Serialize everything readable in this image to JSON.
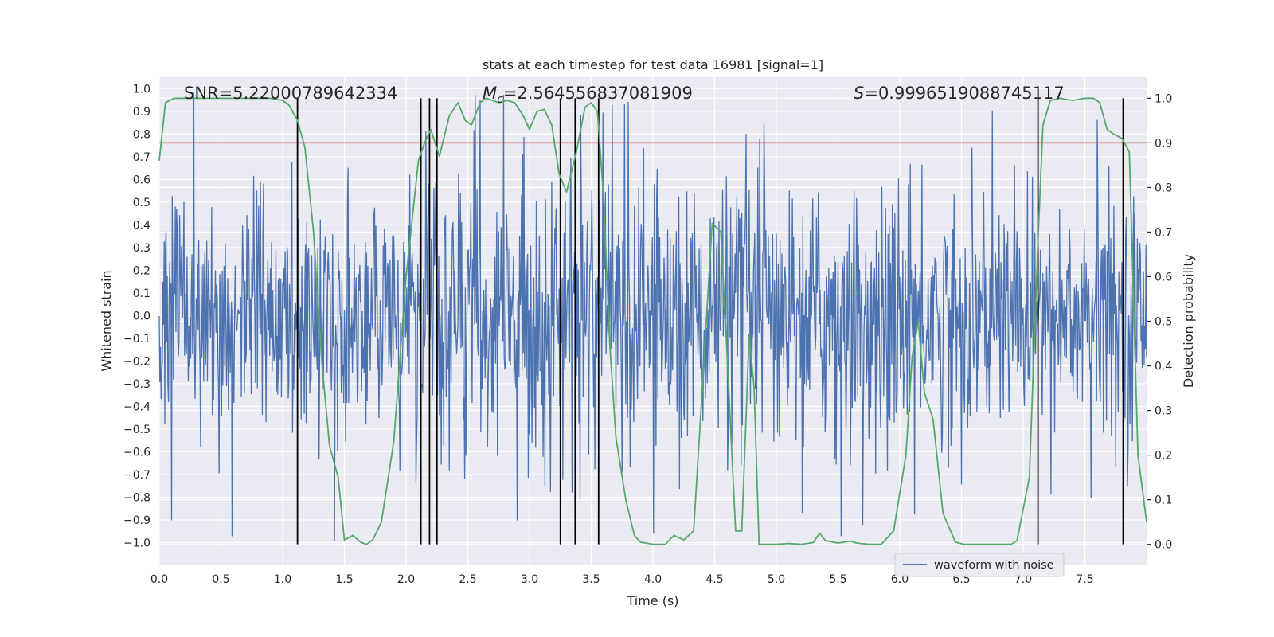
{
  "chart_data": {
    "type": "line",
    "title": "stats at each timestep for test data 16981 [signal=1]",
    "xlabel": "Time (s)",
    "ylabel_left": "Whitened strain",
    "ylabel_right": "Detection probability",
    "xlim": [
      0.0,
      8.0
    ],
    "ylim_left": [
      -1.1,
      1.05
    ],
    "ylim_right": [
      -0.047,
      1.047
    ],
    "xticks": [
      "0.0",
      "0.5",
      "1.0",
      "1.5",
      "2.0",
      "2.5",
      "3.0",
      "3.5",
      "4.0",
      "4.5",
      "5.0",
      "5.5",
      "6.0",
      "6.5",
      "7.0",
      "7.5"
    ],
    "yticks_left": [
      "−1.0",
      "−0.9",
      "−0.8",
      "−0.7",
      "−0.6",
      "−0.5",
      "−0.4",
      "−0.3",
      "−0.2",
      "−0.1",
      "0.0",
      "0.1",
      "0.2",
      "0.3",
      "0.4",
      "0.5",
      "0.6",
      "0.7",
      "0.8",
      "0.9",
      "1.0"
    ],
    "yticks_right": [
      "0.0",
      "0.1",
      "0.2",
      "0.3",
      "0.4",
      "0.5",
      "0.6",
      "0.7",
      "0.8",
      "0.9",
      "1.0"
    ],
    "annotations": {
      "snr": "SNR=5.22000789642334",
      "mc_symbol": "M",
      "mc_sub": "c",
      "mc_value": "=2.564556837081909",
      "s_symbol": "S",
      "s_value": "=0.9996519088745117"
    },
    "threshold": {
      "right_axis_value": 0.9,
      "color": "#c44e52"
    },
    "vlines_x": [
      1.12,
      2.12,
      2.19,
      2.25,
      3.25,
      3.37,
      3.56,
      7.12,
      7.81
    ],
    "series": [
      {
        "name": "waveform with noise",
        "axis": "left",
        "color": "#4c72b0",
        "kind": "noise",
        "sample_interval_s": 0.005,
        "envelope": [
          [
            0.0,
            0.45
          ],
          [
            2.0,
            0.5
          ],
          [
            2.5,
            0.55
          ],
          [
            3.5,
            0.55
          ],
          [
            5.0,
            0.5
          ],
          [
            8.0,
            0.45
          ]
        ],
        "peaks": [
          {
            "x": 0.28,
            "y": 0.98
          },
          {
            "x": 1.42,
            "y": -0.99
          },
          {
            "x": 0.1,
            "y": -0.9
          },
          {
            "x": 2.6,
            "y": 0.95
          },
          {
            "x": 2.9,
            "y": -0.9
          },
          {
            "x": 3.8,
            "y": 0.94
          },
          {
            "x": 4.9,
            "y": 0.85
          },
          {
            "x": 6.75,
            "y": 0.9
          },
          {
            "x": 7.6,
            "y": 0.86
          },
          {
            "x": 5.7,
            "y": -0.92
          },
          {
            "x": 7.55,
            "y": -0.8
          },
          {
            "x": 4.68,
            "y": 0.52
          }
        ]
      },
      {
        "name": "Detection probability",
        "axis": "right",
        "color": "#55a868",
        "x": [
          0.0,
          0.05,
          0.12,
          0.3,
          0.5,
          0.7,
          0.9,
          1.0,
          1.05,
          1.12,
          1.18,
          1.25,
          1.32,
          1.38,
          1.45,
          1.5,
          1.57,
          1.63,
          1.68,
          1.73,
          1.8,
          1.9,
          2.0,
          2.1,
          2.15,
          2.2,
          2.27,
          2.35,
          2.42,
          2.48,
          2.53,
          2.6,
          2.65,
          2.7,
          2.75,
          2.82,
          2.88,
          2.95,
          3.0,
          3.06,
          3.12,
          3.18,
          3.24,
          3.3,
          3.38,
          3.45,
          3.5,
          3.55,
          3.6,
          3.65,
          3.7,
          3.78,
          3.85,
          3.9,
          4.0,
          4.1,
          4.17,
          4.25,
          4.33,
          4.4,
          4.48,
          4.55,
          4.6,
          4.67,
          4.72,
          4.78,
          4.82,
          4.86,
          4.93,
          5.0,
          5.1,
          5.2,
          5.3,
          5.35,
          5.4,
          5.5,
          5.6,
          5.65,
          5.75,
          5.85,
          5.95,
          6.05,
          6.1,
          6.15,
          6.2,
          6.27,
          6.35,
          6.45,
          6.52,
          6.6,
          6.7,
          6.8,
          6.9,
          6.95,
          7.05,
          7.12,
          7.16,
          7.22,
          7.3,
          7.4,
          7.5,
          7.57,
          7.62,
          7.68,
          7.73,
          7.8,
          7.86,
          7.93,
          8.0
        ],
        "y": [
          0.86,
          0.99,
          1.0,
          1.0,
          1.0,
          1.0,
          1.0,
          0.995,
          0.985,
          0.95,
          0.89,
          0.7,
          0.4,
          0.22,
          0.15,
          0.01,
          0.02,
          0.005,
          0.0,
          0.01,
          0.05,
          0.23,
          0.6,
          0.86,
          0.9,
          0.93,
          0.87,
          0.96,
          0.99,
          0.95,
          0.94,
          0.99,
          1.0,
          0.995,
          0.99,
          0.995,
          0.99,
          0.96,
          0.93,
          0.97,
          0.975,
          0.94,
          0.83,
          0.79,
          0.88,
          0.98,
          0.99,
          0.97,
          0.78,
          0.45,
          0.24,
          0.1,
          0.02,
          0.005,
          0.0,
          0.0,
          0.02,
          0.01,
          0.03,
          0.35,
          0.72,
          0.7,
          0.43,
          0.03,
          0.03,
          0.47,
          0.35,
          0.0,
          0.0,
          0.0,
          0.002,
          0.0,
          0.004,
          0.025,
          0.008,
          0.003,
          0.007,
          0.003,
          0.0,
          0.0,
          0.03,
          0.2,
          0.42,
          0.5,
          0.34,
          0.28,
          0.07,
          0.005,
          0.0,
          0.0,
          0.0,
          0.0,
          0.0,
          0.008,
          0.15,
          0.68,
          0.94,
          0.995,
          1.0,
          0.995,
          1.0,
          1.0,
          0.99,
          0.93,
          0.92,
          0.91,
          0.88,
          0.2,
          0.05
        ]
      }
    ],
    "legend": {
      "position": "lower-right",
      "entries": [
        "waveform with noise"
      ]
    }
  }
}
